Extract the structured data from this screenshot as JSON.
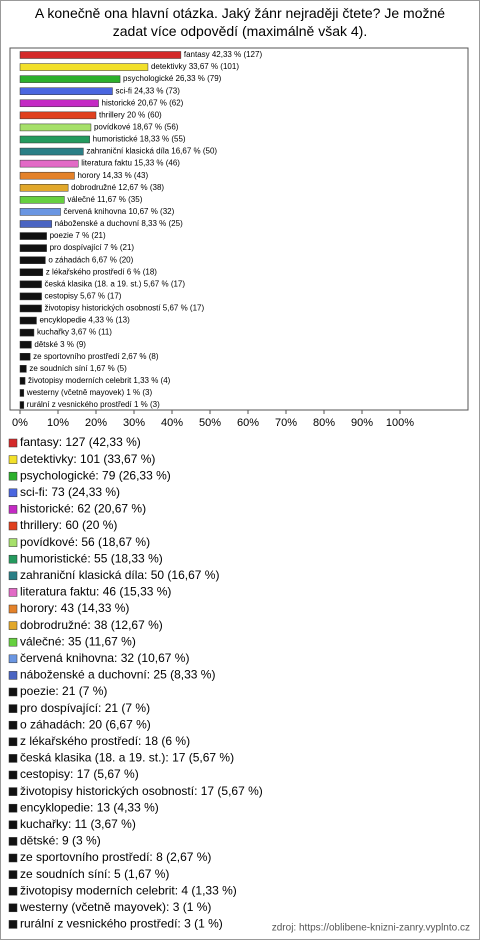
{
  "chart_data": {
    "type": "bar",
    "orientation": "horizontal",
    "title": "A konečně ona hlavní otázka. Jaký žánr nejraději čtete? Je možné zadat více odpovědí (maximálně však 4).",
    "categories": [
      "fantasy",
      "detektivky",
      "psychologické",
      "sci-fi",
      "historické",
      "thrillery",
      "povídkové",
      "humoristické",
      "zahraniční klasická díla",
      "literatura faktu",
      "horory",
      "dobrodružné",
      "válečné",
      "červená knihovna",
      "náboženské a duchovní",
      "poezie",
      "pro dospívající",
      "o záhadách",
      "z lékařského prostředí",
      "česká klasika (18. a 19. st.)",
      "cestopisy",
      "životopisy historických osobností",
      "encyklopedie",
      "kuchařky",
      "dětské",
      "ze sportovního prostředí",
      "ze soudních síní",
      "životopisy moderních celebrit",
      "westerny (včetně mayovek)",
      "rurální z vesnického prostředí"
    ],
    "values": [
      42.33,
      33.67,
      26.33,
      24.33,
      20.67,
      20,
      18.67,
      18.33,
      16.67,
      15.33,
      14.33,
      12.67,
      11.67,
      10.67,
      8.33,
      7,
      7,
      6.67,
      6,
      5.67,
      5.67,
      5.67,
      4.33,
      3.67,
      3,
      2.67,
      1.67,
      1.33,
      1,
      1
    ],
    "value_labels": [
      "fantasy 42,33 % (127)",
      "detektivky 33,67 % (101)",
      "psychologické 26,33 % (79)",
      "sci-fi 24,33 % (73)",
      "historické 20,67 % (62)",
      "thrillery 20 % (60)",
      "povídkové 18,67 % (56)",
      "humoristické 18,33 % (55)",
      "zahraniční klasická díla 16,67 % (50)",
      "literatura faktu 15,33 % (46)",
      "horory 14,33 % (43)",
      "dobrodružné 12,67 % (38)",
      "válečné 11,67 % (35)",
      "červená knihovna 10,67 % (32)",
      "náboženské a duchovní 8,33 % (25)",
      "poezie 7 % (21)",
      "pro dospívající 7 % (21)",
      "o záhadách 6,67 % (20)",
      "z lékařského prostředí 6 % (18)",
      "česká klasika (18. a 19. st.) 5,67 % (17)",
      "cestopisy 5,67 % (17)",
      "životopisy historických osobností 5,67 % (17)",
      "encyklopedie 4,33 % (13)",
      "kuchařky 3,67 % (11)",
      "dětské 3 % (9)",
      "ze sportovního prostředí 2,67 % (8)",
      "ze soudních síní 1,67 % (5)",
      "životopisy moderních celebrit 1,33 % (4)",
      "westerny (včetně mayovek) 1 % (3)",
      "rurální z vesnického prostředí 1 % (3)"
    ],
    "legend_labels": [
      "fantasy: 127 (42,33 %)",
      "detektivky: 101 (33,67 %)",
      "psychologické: 79 (26,33 %)",
      "sci-fi: 73 (24,33 %)",
      "historické: 62 (20,67 %)",
      "thrillery: 60 (20 %)",
      "povídkové: 56 (18,67 %)",
      "humoristické: 55 (18,33 %)",
      "zahraniční klasická díla: 50 (16,67 %)",
      "literatura faktu: 46 (15,33 %)",
      "horory: 43 (14,33 %)",
      "dobrodružné: 38 (12,67 %)",
      "válečné: 35 (11,67 %)",
      "červená knihovna: 32 (10,67 %)",
      "náboženské a duchovní: 25 (8,33 %)",
      "poezie: 21 (7 %)",
      "pro dospívající: 21 (7 %)",
      "o záhadách: 20 (6,67 %)",
      "z lékařského prostředí: 18 (6 %)",
      "česká klasika (18. a 19. st.): 17 (5,67 %)",
      "cestopisy: 17 (5,67 %)",
      "životopisy historických osobností: 17 (5,67 %)",
      "encyklopedie: 13 (4,33 %)",
      "kuchařky: 11 (3,67 %)",
      "dětské: 9 (3 %)",
      "ze sportovního prostředí: 8 (2,67 %)",
      "ze soudních síní: 5 (1,67 %)",
      "životopisy moderních celebrit: 4 (1,33 %)",
      "westerny (včetně mayovek): 3 (1 %)",
      "rurální z vesnického prostředí: 3 (1 %)"
    ],
    "colors": [
      "#d42a2a",
      "#f2e02a",
      "#2cb02c",
      "#4a66e0",
      "#c42ac4",
      "#e0401e",
      "#a6e06a",
      "#249a5e",
      "#2a7f86",
      "#e26ac6",
      "#e4822a",
      "#e2a82a",
      "#66d040",
      "#6a96e2",
      "#4a64c2",
      "#111",
      "#111",
      "#111",
      "#111",
      "#111",
      "#111",
      "#111",
      "#111",
      "#111",
      "#111",
      "#111",
      "#111",
      "#111",
      "#111",
      "#111"
    ],
    "xlim": [
      0,
      100
    ],
    "xticks": [
      {
        "value": 0,
        "label": "0%"
      },
      {
        "value": 10,
        "label": "10%"
      },
      {
        "value": 20,
        "label": "20%"
      },
      {
        "value": 30,
        "label": "30%"
      },
      {
        "value": 40,
        "label": "40%"
      },
      {
        "value": 50,
        "label": "50%"
      },
      {
        "value": 60,
        "label": "60%"
      },
      {
        "value": 70,
        "label": "70%"
      },
      {
        "value": 80,
        "label": "80%"
      },
      {
        "value": 90,
        "label": "90%"
      },
      {
        "value": 100,
        "label": "100%"
      }
    ],
    "grid": false,
    "source": "zdroj: https://oblibene-knizni-zanry.vyplnto.cz"
  }
}
